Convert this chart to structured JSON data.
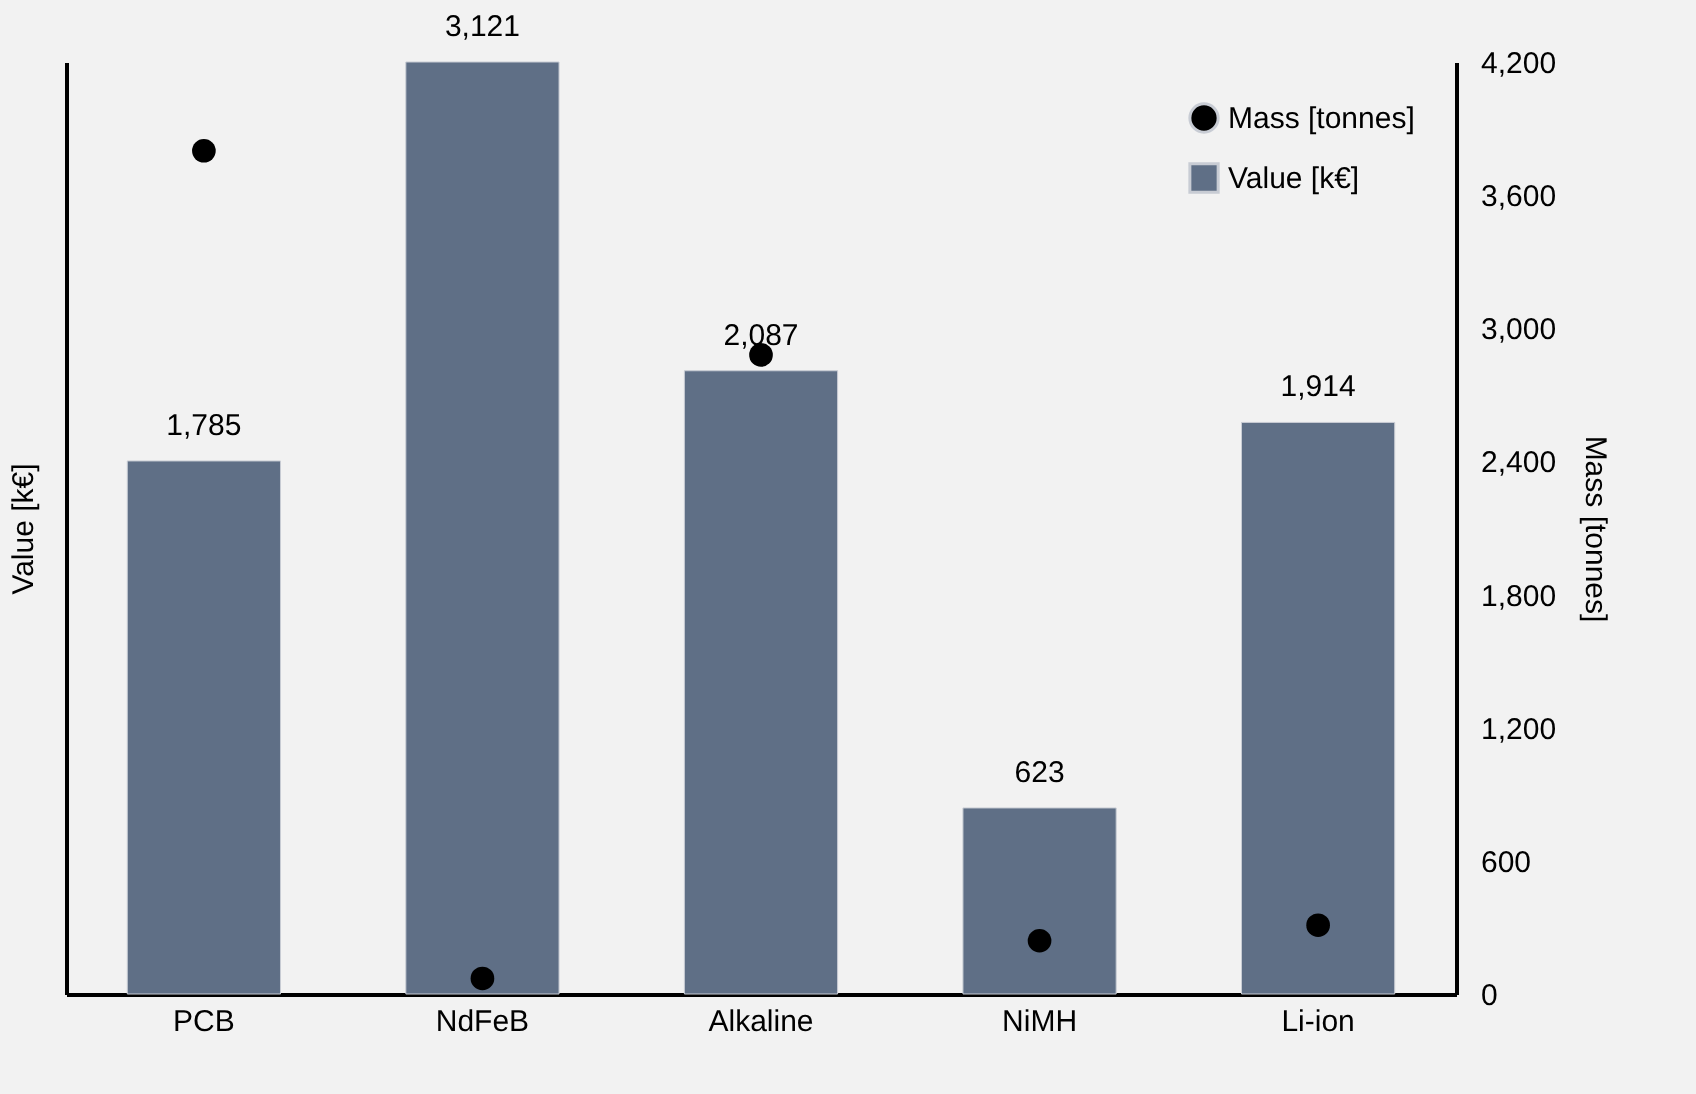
{
  "chart_data": {
    "type": "bar",
    "xlabel": null,
    "ylabel": "Value [k€]",
    "y2label": "Mass [tonnes]",
    "categories": [
      "PCB",
      "NdFeB",
      "Alkaline",
      "NiMH",
      "Li-ion"
    ],
    "series": [
      {
        "name": "Mass [tonnes]",
        "type": "scatter",
        "axis": "y2",
        "color": "#000000",
        "values": [
          3800,
          70,
          2880,
          240,
          310
        ]
      },
      {
        "name": "Value [k€]",
        "color": "#5f6f86",
        "values": [
          1785,
          3121,
          2087,
          623,
          1914
        ],
        "value_labels": [
          "1,785",
          "3,121",
          "2,087",
          "623",
          "1,914"
        ]
      }
    ],
    "ylim": [
      0,
      3121
    ],
    "y2lim": [
      0,
      4200
    ],
    "y2ticks": [
      0,
      600,
      {
        "value": 1200,
        "label": "1,200"
      },
      {
        "value": 1800,
        "label": "1,800"
      },
      {
        "value": 2400,
        "label": "2,400"
      },
      {
        "value": 3000,
        "label": "3,000"
      },
      {
        "value": 3600,
        "label": "3,600"
      },
      {
        "value": 4200,
        "label": "4,200"
      }
    ],
    "legend": "top right",
    "grid": false,
    "marker": "circle"
  }
}
